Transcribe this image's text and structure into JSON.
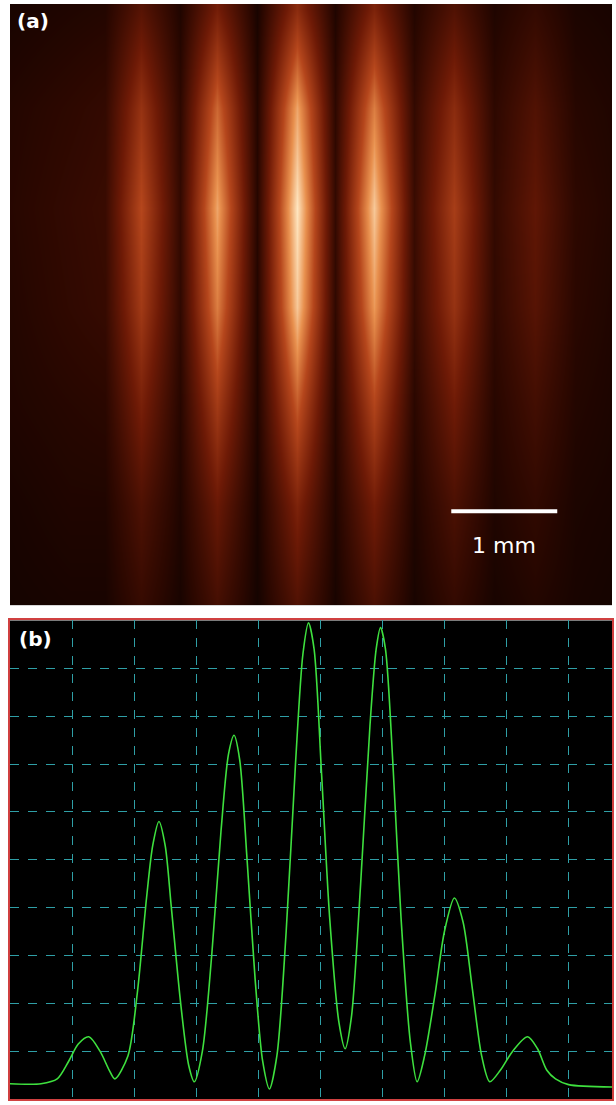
{
  "chart_data": [
    {
      "type": "heatmap",
      "title": "(a)",
      "x": [
        0,
        0.57,
        0.9,
        1.24,
        1.6,
        1.95,
        2.33,
        2.71,
        3.07,
        3.43,
        3.81,
        4.19,
        4.57,
        4.95,
        5.33,
        5.68
      ],
      "y": [
        0,
        0.95,
        1.9,
        2.86,
        3.81,
        4.76,
        5.71
      ],
      "z": [
        [
          0.06,
          0.07,
          0.07,
          0.16,
          0.07,
          0.21,
          0.06,
          0.25,
          0.07,
          0.23,
          0.07,
          0.15,
          0.07,
          0.1,
          0.07,
          0.06
        ],
        [
          0.07,
          0.09,
          0.09,
          0.24,
          0.09,
          0.33,
          0.07,
          0.4,
          0.09,
          0.36,
          0.09,
          0.23,
          0.09,
          0.14,
          0.08,
          0.07
        ],
        [
          0.09,
          0.11,
          0.12,
          0.38,
          0.11,
          0.53,
          0.09,
          0.65,
          0.11,
          0.58,
          0.12,
          0.35,
          0.11,
          0.2,
          0.1,
          0.08
        ],
        [
          0.1,
          0.14,
          0.16,
          0.53,
          0.14,
          0.75,
          0.1,
          0.93,
          0.14,
          0.82,
          0.16,
          0.49,
          0.14,
          0.27,
          0.12,
          0.09
        ],
        [
          0.11,
          0.15,
          0.17,
          0.6,
          0.15,
          0.85,
          0.11,
          1.0,
          0.15,
          0.93,
          0.17,
          0.55,
          0.15,
          0.3,
          0.13,
          0.1
        ],
        [
          0.1,
          0.13,
          0.15,
          0.49,
          0.13,
          0.69,
          0.1,
          0.85,
          0.13,
          0.75,
          0.15,
          0.45,
          0.13,
          0.25,
          0.11,
          0.09
        ],
        [
          0.07,
          0.09,
          0.1,
          0.27,
          0.09,
          0.37,
          0.07,
          0.45,
          0.09,
          0.4,
          0.1,
          0.25,
          0.09,
          0.15,
          0.08,
          0.07
        ]
      ],
      "zlim": [
        0,
        1
      ],
      "xlim": [
        0,
        5.68
      ],
      "ylim": [
        0,
        5.76
      ],
      "tick_labels": false,
      "scale_bar": {
        "length": 1,
        "label": "1 mm"
      }
    },
    {
      "type": "line",
      "title": "(b)",
      "x": [
        0,
        0.5,
        0.76,
        0.95,
        1.1,
        1.27,
        1.45,
        1.6,
        1.69,
        1.9,
        2.05,
        2.2,
        2.3,
        2.4,
        2.5,
        2.6,
        2.75,
        2.88,
        2.97,
        3.1,
        3.25,
        3.4,
        3.52,
        3.61,
        3.7,
        3.82,
        3.95,
        4.07,
        4.18,
        4.3,
        4.45,
        4.6,
        4.72,
        4.81,
        4.9,
        5.02,
        5.15,
        5.3,
        5.4,
        5.5,
        5.65,
        5.8,
        5.9,
        5.97,
        6.05,
        6.17,
        6.3,
        6.45,
        6.56,
        6.68,
        6.85,
        7.0,
        7.16,
        7.3,
        7.45,
        7.6,
        7.73,
        7.9,
        8.1,
        8.34,
        8.5,
        8.65,
        8.79,
        9.0,
        9.7
      ],
      "values": [
        0.32,
        0.32,
        0.42,
        0.8,
        1.15,
        1.3,
        1.0,
        0.6,
        0.42,
        0.9,
        2.2,
        4.2,
        5.3,
        5.8,
        5.3,
        4.0,
        2.0,
        0.7,
        0.36,
        1.0,
        3.0,
        5.6,
        7.2,
        7.6,
        7.1,
        5.0,
        2.5,
        0.8,
        0.21,
        0.9,
        3.5,
        7.0,
        9.3,
        9.95,
        9.4,
        6.8,
        3.8,
        1.6,
        1.05,
        1.7,
        4.5,
        7.8,
        9.4,
        9.85,
        9.4,
        7.0,
        3.8,
        1.2,
        0.36,
        0.9,
        2.2,
        3.5,
        4.2,
        3.7,
        2.3,
        0.9,
        0.36,
        0.6,
        1.0,
        1.3,
        1.05,
        0.6,
        0.42,
        0.3,
        0.25
      ],
      "xlim": [
        0,
        9.7
      ],
      "ylim": [
        0,
        10
      ],
      "xticks": [
        1,
        2,
        3,
        4,
        5,
        6,
        7,
        8,
        9
      ],
      "yticks": [
        1,
        2,
        3,
        4,
        5,
        6,
        7,
        8,
        9
      ],
      "grid": true,
      "tick_labels": false,
      "color": "#3ee03e"
    }
  ]
}
